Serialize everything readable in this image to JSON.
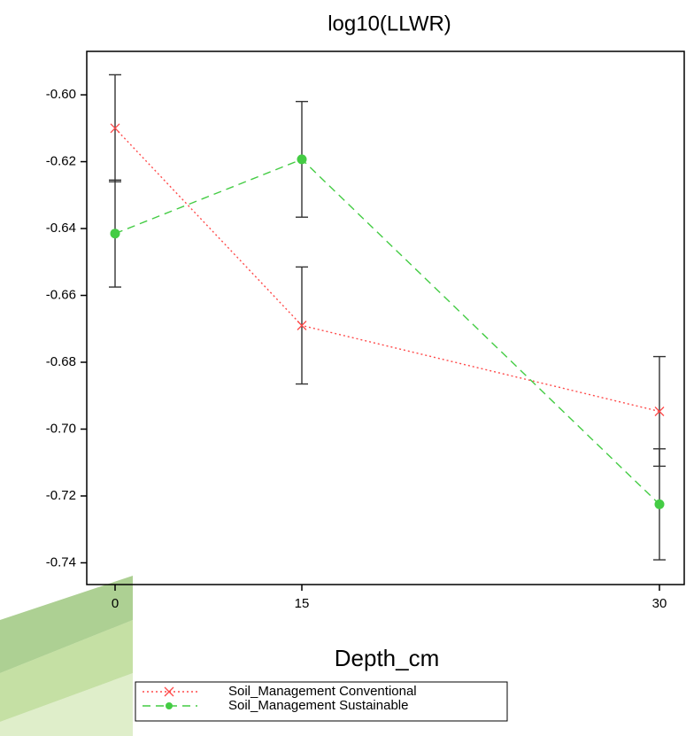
{
  "chart_data": {
    "type": "line",
    "title": "log10(LLWR)",
    "x_label": "Depth_cm",
    "categories": [
      "0",
      "15",
      "30"
    ],
    "series": [
      {
        "name": "Soil_Management Conventional",
        "color": "#ff4a4a",
        "marker": "x",
        "dash": "dotted",
        "values": [
          -0.61,
          -0.669,
          -0.6947
        ],
        "errors": [
          0.016,
          0.0175,
          0.0164
        ]
      },
      {
        "name": "Soil_Management Sustainable",
        "color": "#44cc44",
        "marker": "circle",
        "dash": "dashed",
        "values": [
          -0.6415,
          -0.6193,
          -0.7225
        ],
        "errors": [
          0.016,
          0.0173,
          0.0166
        ]
      }
    ],
    "ylim": [
      -0.7465,
      -0.587
    ],
    "yticks": [
      {
        "value": -0.6,
        "label": "-0.60"
      },
      {
        "value": -0.62,
        "label": "-0.62"
      },
      {
        "value": -0.64,
        "label": "-0.64"
      },
      {
        "value": -0.66,
        "label": "-0.66"
      },
      {
        "value": -0.68,
        "label": "-0.68"
      },
      {
        "value": -0.7,
        "label": "-0.70"
      },
      {
        "value": -0.72,
        "label": "-0.72"
      },
      {
        "value": -0.74,
        "label": "-0.74"
      }
    ],
    "error_bars": true,
    "legend": "bottom"
  }
}
